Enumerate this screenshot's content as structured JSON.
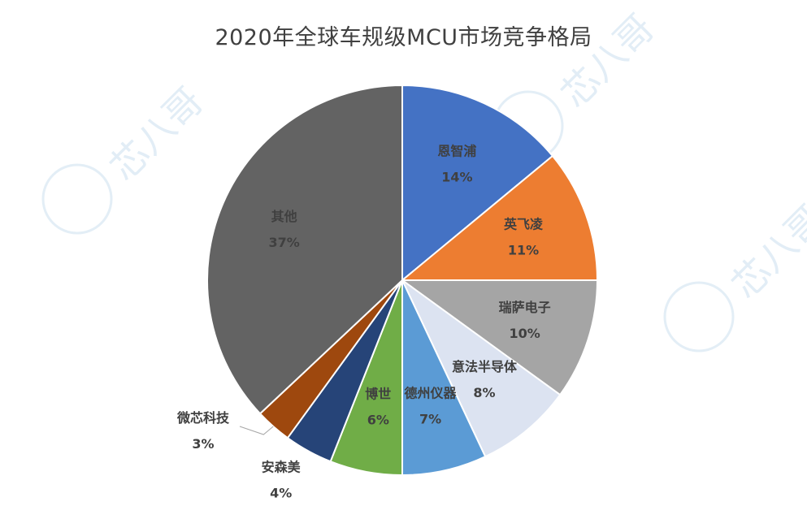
{
  "chart_data": {
    "type": "pie",
    "title": "2020年全球车规级MCU市场竞争格局",
    "slices": [
      {
        "name": "恩智浦",
        "value": 14,
        "pct_label": "14%",
        "color": "#4472C4",
        "label_color": "#404040"
      },
      {
        "name": "英飞凌",
        "value": 11,
        "pct_label": "11%",
        "color": "#ED7D31",
        "label_color": "#404040"
      },
      {
        "name": "瑞萨电子",
        "value": 10,
        "pct_label": "10%",
        "color": "#A5A5A5",
        "label_color": "#404040"
      },
      {
        "name": "意法半导体",
        "value": 8,
        "pct_label": "8%",
        "color": "#DCE3F1",
        "label_color": "#404040"
      },
      {
        "name": "德州仪器",
        "value": 7,
        "pct_label": "7%",
        "color": "#5B9BD5",
        "label_color": "#404040"
      },
      {
        "name": "博世",
        "value": 6,
        "pct_label": "6%",
        "color": "#70AD47",
        "label_color": "#404040"
      },
      {
        "name": "安森美",
        "value": 4,
        "pct_label": "4%",
        "color": "#264478",
        "label_color": "#404040"
      },
      {
        "name": "微芯科技",
        "value": 3,
        "pct_label": "3%",
        "color": "#9E480E",
        "label_color": "#404040"
      },
      {
        "name": "其他",
        "value": 37,
        "pct_label": "37%",
        "color": "#636363",
        "label_color": "#404040"
      }
    ]
  },
  "watermark": {
    "text": "芯八哥"
  }
}
